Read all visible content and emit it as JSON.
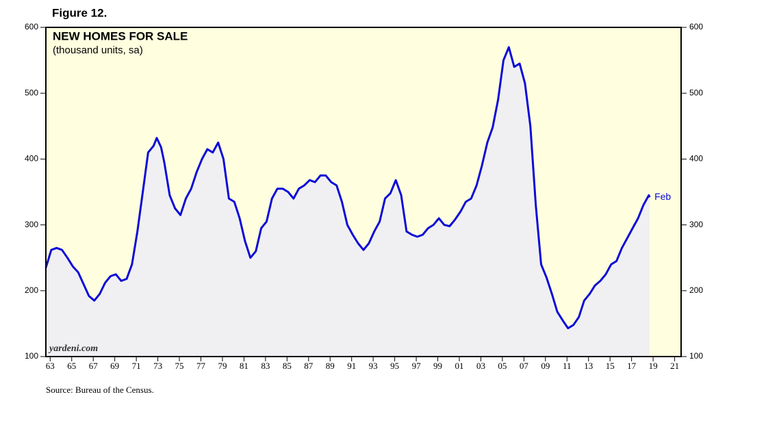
{
  "figure_label": "Figure 12.",
  "chart_data": {
    "type": "line",
    "title": "NEW HOMES FOR SALE",
    "subtitle": "(thousand units, sa)",
    "watermark": "yardeni.com",
    "source": "Source: Bureau of the Census.",
    "end_annotation": "Feb",
    "xlim": [
      1963,
      2022
    ],
    "ylim": [
      100,
      600
    ],
    "yticks": [
      100,
      200,
      300,
      400,
      500,
      600
    ],
    "xticks": [
      {
        "value": 1963.4,
        "label": "63"
      },
      {
        "value": 1965.4,
        "label": "65"
      },
      {
        "value": 1967.4,
        "label": "67"
      },
      {
        "value": 1969.4,
        "label": "69"
      },
      {
        "value": 1971.4,
        "label": "71"
      },
      {
        "value": 1973.4,
        "label": "73"
      },
      {
        "value": 1975.4,
        "label": "75"
      },
      {
        "value": 1977.4,
        "label": "77"
      },
      {
        "value": 1979.4,
        "label": "79"
      },
      {
        "value": 1981.4,
        "label": "81"
      },
      {
        "value": 1983.4,
        "label": "83"
      },
      {
        "value": 1985.4,
        "label": "85"
      },
      {
        "value": 1987.4,
        "label": "87"
      },
      {
        "value": 1989.4,
        "label": "89"
      },
      {
        "value": 1991.4,
        "label": "91"
      },
      {
        "value": 1993.4,
        "label": "93"
      },
      {
        "value": 1995.4,
        "label": "95"
      },
      {
        "value": 1997.4,
        "label": "97"
      },
      {
        "value": 1999.4,
        "label": "99"
      },
      {
        "value": 2001.4,
        "label": "01"
      },
      {
        "value": 2003.4,
        "label": "03"
      },
      {
        "value": 2005.4,
        "label": "05"
      },
      {
        "value": 2007.4,
        "label": "07"
      },
      {
        "value": 2009.4,
        "label": "09"
      },
      {
        "value": 2011.4,
        "label": "11"
      },
      {
        "value": 2013.4,
        "label": "13"
      },
      {
        "value": 2015.4,
        "label": "15"
      },
      {
        "value": 2017.4,
        "label": "17"
      },
      {
        "value": 2019.4,
        "label": "19"
      },
      {
        "value": 2021.4,
        "label": "21"
      }
    ],
    "color": "#0a0ad8",
    "area_color": "#f0f0f2",
    "background": "#ffffe0",
    "x": [
      1963.0,
      1963.5,
      1964.0,
      1964.5,
      1965.0,
      1965.5,
      1966.0,
      1966.5,
      1967.0,
      1967.5,
      1968.0,
      1968.5,
      1969.0,
      1969.5,
      1970.0,
      1970.5,
      1971.0,
      1971.5,
      1972.0,
      1972.5,
      1973.0,
      1973.3,
      1973.7,
      1974.0,
      1974.5,
      1975.0,
      1975.5,
      1976.0,
      1976.5,
      1977.0,
      1977.5,
      1978.0,
      1978.5,
      1979.0,
      1979.5,
      1980.0,
      1980.5,
      1981.0,
      1981.5,
      1982.0,
      1982.5,
      1983.0,
      1983.5,
      1984.0,
      1984.5,
      1985.0,
      1985.5,
      1986.0,
      1986.5,
      1987.0,
      1987.5,
      1988.0,
      1988.5,
      1989.0,
      1989.5,
      1990.0,
      1990.5,
      1991.0,
      1991.5,
      1992.0,
      1992.5,
      1993.0,
      1993.5,
      1994.0,
      1994.5,
      1995.0,
      1995.5,
      1996.0,
      1996.5,
      1997.0,
      1997.5,
      1998.0,
      1998.5,
      1999.0,
      1999.5,
      2000.0,
      2000.5,
      2001.0,
      2001.5,
      2002.0,
      2002.5,
      2003.0,
      2003.5,
      2004.0,
      2004.5,
      2005.0,
      2005.5,
      2006.0,
      2006.5,
      2007.0,
      2007.5,
      2008.0,
      2008.5,
      2009.0,
      2009.5,
      2010.0,
      2010.5,
      2011.0,
      2011.5,
      2012.0,
      2012.5,
      2013.0,
      2013.5,
      2014.0,
      2014.5,
      2015.0,
      2015.5,
      2016.0,
      2016.5,
      2017.0,
      2017.5,
      2018.0,
      2018.5,
      2019.0,
      2019.08
    ],
    "values": [
      235,
      262,
      265,
      262,
      250,
      237,
      228,
      210,
      192,
      185,
      195,
      212,
      222,
      225,
      215,
      218,
      240,
      290,
      350,
      410,
      420,
      432,
      418,
      395,
      345,
      325,
      315,
      340,
      355,
      380,
      400,
      415,
      410,
      425,
      400,
      340,
      335,
      310,
      275,
      250,
      260,
      295,
      305,
      340,
      355,
      355,
      350,
      340,
      355,
      360,
      368,
      365,
      375,
      375,
      365,
      360,
      335,
      300,
      285,
      272,
      262,
      272,
      290,
      305,
      340,
      348,
      368,
      345,
      290,
      285,
      282,
      285,
      295,
      300,
      310,
      300,
      298,
      308,
      320,
      335,
      340,
      360,
      390,
      425,
      448,
      490,
      550,
      570,
      540,
      545,
      515,
      450,
      330,
      240,
      220,
      195,
      168,
      155,
      143,
      148,
      160,
      185,
      195,
      208,
      215,
      225,
      240,
      245,
      265,
      280,
      295,
      310,
      330,
      345,
      342
    ]
  }
}
